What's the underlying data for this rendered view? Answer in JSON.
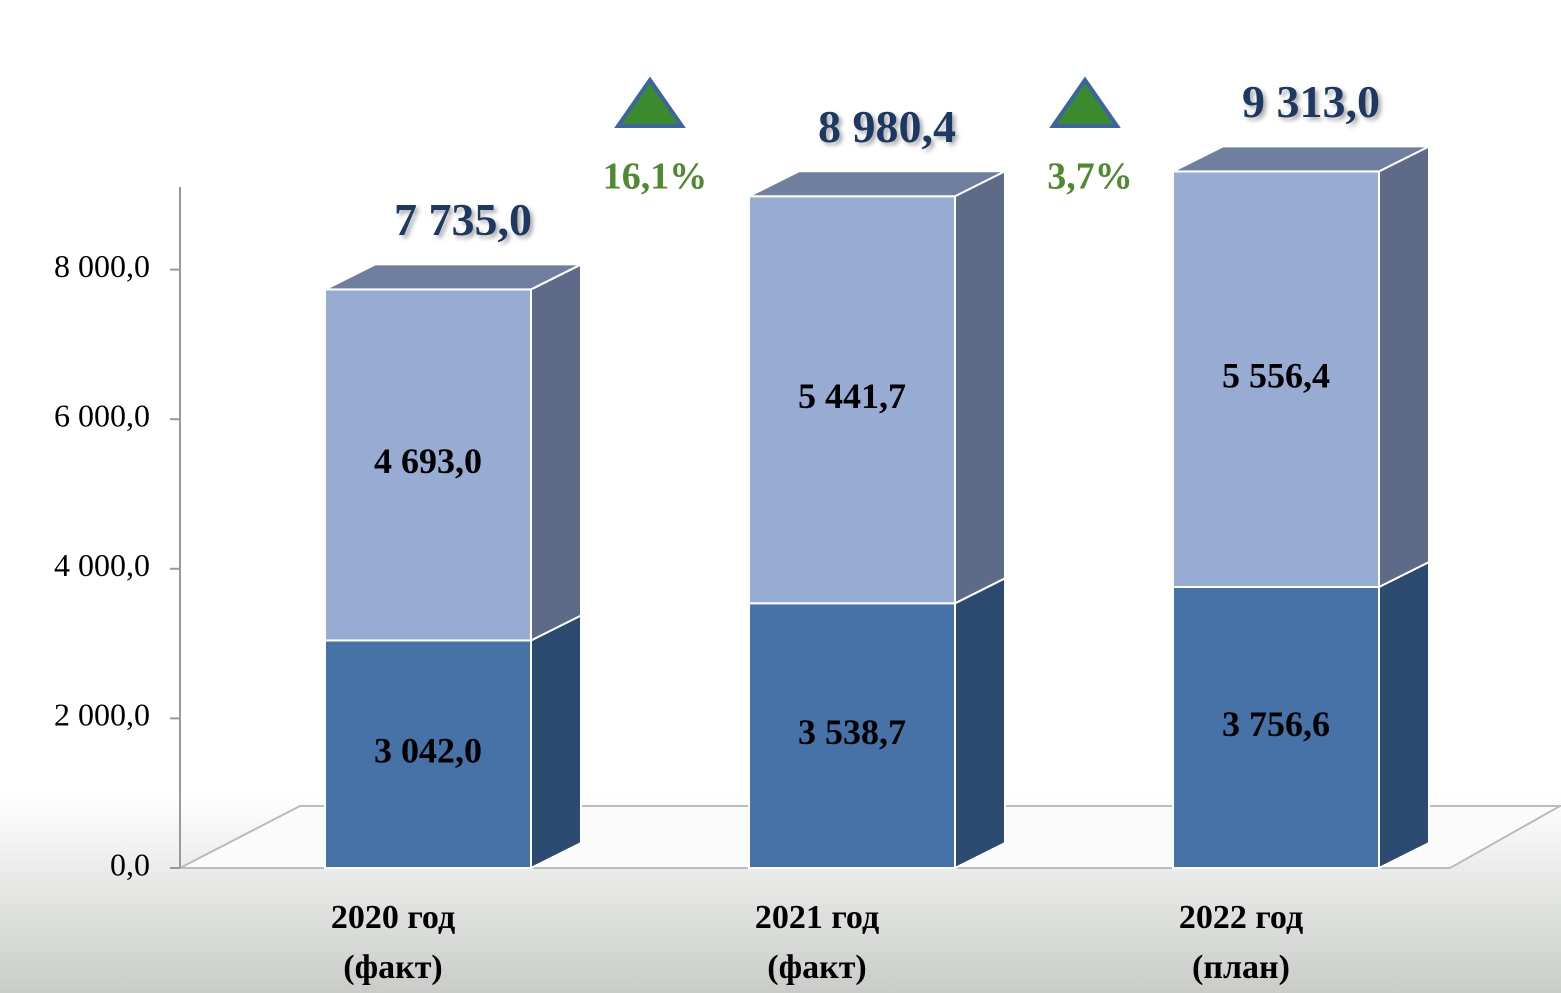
{
  "chart_data": {
    "type": "bar3d_stacked",
    "categories": [
      [
        "2020 год",
        "(факт)"
      ],
      [
        "2021 год",
        "(факт)"
      ],
      [
        "2022 год",
        "(план)"
      ]
    ],
    "series": [
      {
        "color": "#4672a8",
        "side_color": "#2c4a70",
        "values": [
          3042.0,
          3538.7,
          3756.6
        ],
        "value_labels": [
          "3 042,0",
          "3 538,7",
          "3 756,6"
        ]
      },
      {
        "color": "#97abd3",
        "side_color": "#5d6b88",
        "values": [
          4693.0,
          5441.7,
          5556.4
        ],
        "value_labels": [
          "4 693,0",
          "5 441,7",
          "5 556,4"
        ]
      }
    ],
    "totals": {
      "values": [
        7735.0,
        8980.4,
        9313.0
      ],
      "value_labels": [
        "7 735,0",
        "8 980,4",
        "9 313,0"
      ]
    },
    "annotations": [
      {
        "text": "16,1%"
      },
      {
        "text": "3,7%"
      }
    ],
    "ylim": [
      0,
      10000
    ],
    "yticks": [
      {
        "value": 0,
        "label": "0,0"
      },
      {
        "value": 2000,
        "label": "2 000,0"
      },
      {
        "value": 4000,
        "label": "4 000,0"
      },
      {
        "value": 6000,
        "label": "6 000,0"
      },
      {
        "value": 8000,
        "label": "8 000,0"
      }
    ]
  }
}
